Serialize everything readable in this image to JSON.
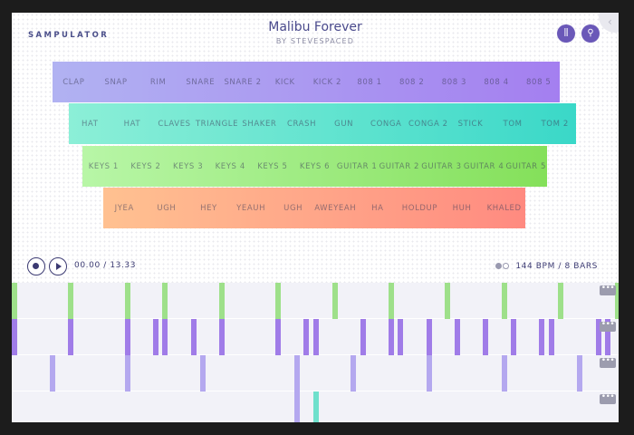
{
  "brand": "SAMPULATOR",
  "song": {
    "title": "Malibu Forever",
    "byline": "BY STEVESPACED"
  },
  "header_buttons": [
    {
      "icon": "waveform-icon",
      "glyph": "⫼"
    },
    {
      "icon": "key-icon",
      "glyph": "⚲"
    }
  ],
  "pad_rows": [
    {
      "colors": [
        "#b1b2f2",
        "#a47ff0"
      ],
      "labels": [
        "CLAP",
        "SNAP",
        "RIM",
        "SNARE",
        "SNARE 2",
        "KICK",
        "KICK 2",
        "808 1",
        "808 2",
        "808 3",
        "808 4",
        "808 5"
      ]
    },
    {
      "colors": [
        "#8cefd7",
        "#3ad8c8"
      ],
      "labels": [
        "HAT",
        "HAT",
        "CLAVES",
        "TRIANGLE",
        "SHAKER",
        "CRASH",
        "GUN",
        "CONGA",
        "CONGA 2",
        "STICK",
        "TOM",
        "TOM 2"
      ]
    },
    {
      "colors": [
        "#b8f6a7",
        "#84e05a"
      ],
      "labels": [
        "KEYS 1",
        "KEYS 2",
        "KEYS 3",
        "KEYS 4",
        "KEYS 5",
        "KEYS 6",
        "GUITAR 1",
        "GUITAR 2",
        "GUITAR 3",
        "GUITAR 4",
        "GUITAR 5"
      ]
    },
    {
      "colors": [
        "#ffc191",
        "#ff8a80"
      ],
      "labels": [
        "JYEA",
        "UGH",
        "HEY",
        "YEAUH",
        "UGH",
        "AWEYEAH",
        "HA",
        "HOLDUP",
        "HUH",
        "KHALED"
      ]
    }
  ],
  "transport": {
    "time": "00.00 / 13.33",
    "tempo": "144 BPM / 8 BARS"
  },
  "tracks": [
    {
      "color": "#9ee08a",
      "accent": "#b8eca6",
      "steps": [
        0,
        6,
        12,
        16,
        22,
        28,
        34,
        40,
        46,
        52,
        58,
        64
      ]
    },
    {
      "color": "#a07ce8",
      "accent": "#b59ae8",
      "steps": [
        0,
        6,
        12,
        15,
        16,
        19,
        22,
        28,
        31,
        32,
        37,
        40,
        41,
        44,
        47,
        50,
        53,
        56,
        57,
        62,
        63
      ]
    },
    {
      "color": "#b4a8ef",
      "accent": "#c6bcf2",
      "steps": [
        4,
        12,
        20,
        30,
        36,
        44,
        52,
        60
      ]
    },
    {
      "color": "#b4a8ef",
      "accent": "#6fe0cc",
      "steps": [
        30,
        32
      ]
    }
  ],
  "step_accent": {
    "3": [
      1
    ]
  },
  "more_label": "•••"
}
